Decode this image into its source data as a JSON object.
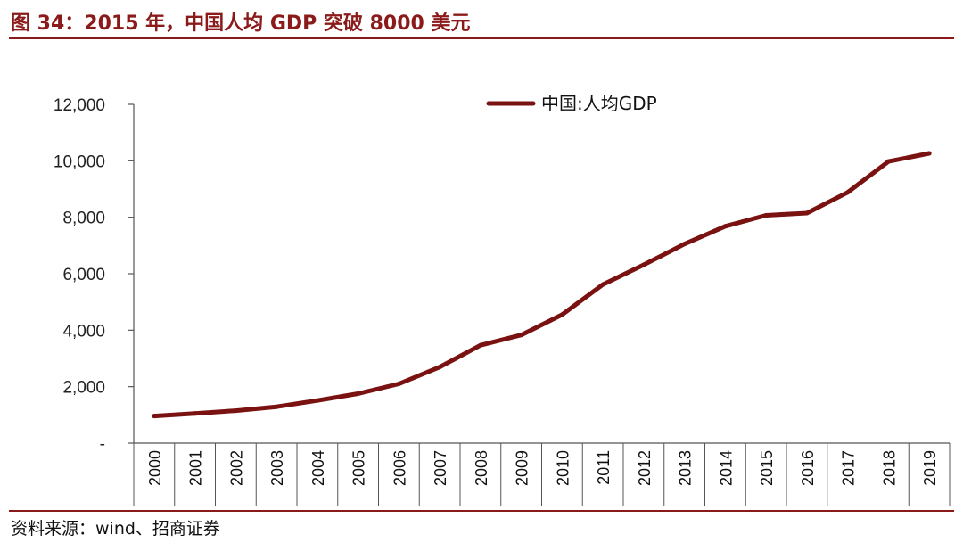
{
  "figure": {
    "title": "图 34：2015 年，中国人均 GDP 突破 8000 美元",
    "source": "资料来源：wind、招商证券"
  },
  "colors": {
    "accent": "#8B1A1A",
    "line": "#7A1212"
  },
  "chart_data": {
    "type": "line",
    "title": "",
    "xlabel": "",
    "ylabel": "",
    "categories": [
      "2000",
      "2001",
      "2002",
      "2003",
      "2004",
      "2005",
      "2006",
      "2007",
      "2008",
      "2009",
      "2010",
      "2011",
      "2012",
      "2013",
      "2014",
      "2015",
      "2016",
      "2017",
      "2018",
      "2019"
    ],
    "series": [
      {
        "name": "中国:人均GDP",
        "values": [
          959,
          1053,
          1149,
          1289,
          1509,
          1753,
          2099,
          2694,
          3468,
          3832,
          4550,
          5618,
          6317,
          7051,
          7679,
          8067,
          8148,
          8879,
          9977,
          10262
        ]
      }
    ],
    "ylim": [
      0,
      12000
    ],
    "yticks": [
      0,
      2000,
      4000,
      6000,
      8000,
      10000,
      12000
    ],
    "ytick_labels": [
      "-",
      "2,000",
      "4,000",
      "6,000",
      "8,000",
      "10,000",
      "12,000"
    ],
    "grid": false,
    "legend_position": "top"
  }
}
